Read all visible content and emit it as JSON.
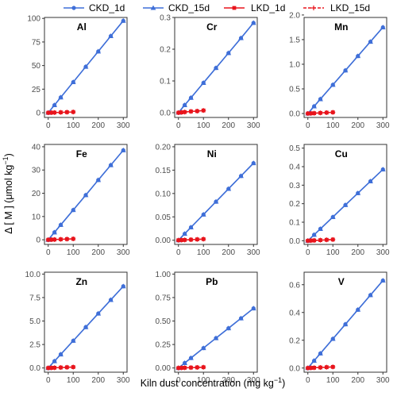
{
  "colors": {
    "ckd": "#3F6FD8",
    "lkd": "#E8141C",
    "frame": "#333333"
  },
  "legend": [
    {
      "label": "CKD_1d",
      "series": "CKD",
      "marker": "circle",
      "line": "solid"
    },
    {
      "label": "CKD_15d",
      "series": "CKD",
      "marker": "triangle",
      "line": "solid"
    },
    {
      "label": "LKD_1d",
      "series": "LKD",
      "marker": "square",
      "line": "solid"
    },
    {
      "label": "LKD_15d",
      "series": "LKD",
      "marker": "plus",
      "line": "dashed"
    }
  ],
  "axes": {
    "xlabel": "Kiln dust concentration (mg kg",
    "xlabel_sup": "−1",
    "xlabel_end": ")",
    "ylabel": "Δ [ M ] (μmol kg",
    "ylabel_sup": "−1",
    "ylabel_end": ")"
  },
  "chart_data": [
    {
      "type": "line",
      "title": "Al",
      "ylim": [
        -5,
        101
      ],
      "xlim": [
        -15,
        315
      ],
      "xticks": [
        0,
        100,
        200,
        300
      ],
      "yticks": [
        0,
        25,
        50,
        75,
        100
      ],
      "ytick_labels": [
        "0",
        "25",
        "50",
        "75",
        "100"
      ],
      "ckd_x": [
        0,
        25,
        50,
        100,
        150,
        200,
        250,
        300
      ],
      "ckd_1d": [
        0,
        8.1,
        16.3,
        32.5,
        48.8,
        65.0,
        81.3,
        97.5
      ],
      "ckd_15d": [
        0,
        8.1,
        16.3,
        32.5,
        48.8,
        65.0,
        81.3,
        97.5
      ],
      "lkd_x": [
        0,
        12.5,
        25,
        50,
        75,
        100
      ],
      "lkd_1d": [
        0,
        0.1,
        0.2,
        0.4,
        0.6,
        0.8
      ],
      "lkd_15d": [
        0,
        0.1,
        0.2,
        0.4,
        0.6,
        0.8
      ]
    },
    {
      "type": "line",
      "title": "Cr",
      "ylim": [
        -0.015,
        0.3
      ],
      "xlim": [
        -15,
        315
      ],
      "xticks": [
        0,
        100,
        200,
        300
      ],
      "yticks": [
        0,
        0.1,
        0.2,
        0.3
      ],
      "ytick_labels": [
        "0.0",
        "0.1",
        "0.2",
        "0.3"
      ],
      "ckd_x": [
        0,
        25,
        50,
        100,
        150,
        200,
        250,
        300
      ],
      "ckd_1d": [
        0,
        0.024,
        0.047,
        0.094,
        0.141,
        0.188,
        0.235,
        0.283
      ],
      "ckd_15d": [
        0,
        0.024,
        0.047,
        0.094,
        0.141,
        0.188,
        0.235,
        0.283
      ],
      "lkd_x": [
        0,
        12.5,
        25,
        50,
        75,
        100
      ],
      "lkd_1d": [
        0,
        0.001,
        0.002,
        0.004,
        0.005,
        0.007
      ],
      "lkd_15d": [
        0,
        0.001,
        0.002,
        0.004,
        0.005,
        0.007
      ]
    },
    {
      "type": "line",
      "title": "Mn",
      "ylim": [
        -0.08,
        1.95
      ],
      "xlim": [
        -15,
        315
      ],
      "xticks": [
        0,
        100,
        200,
        300
      ],
      "yticks": [
        0,
        0.5,
        1.0,
        1.5,
        2.0
      ],
      "ytick_labels": [
        "0.0",
        "0.5",
        "1.0",
        "1.5",
        "2.0"
      ],
      "ckd_x": [
        0,
        25,
        50,
        100,
        150,
        200,
        250,
        300
      ],
      "ckd_1d": [
        0,
        0.146,
        0.292,
        0.583,
        0.875,
        1.167,
        1.458,
        1.75
      ],
      "ckd_15d": [
        0,
        0.146,
        0.292,
        0.583,
        0.875,
        1.167,
        1.458,
        1.75
      ],
      "lkd_x": [
        0,
        12.5,
        25,
        50,
        75,
        100
      ],
      "lkd_1d": [
        0,
        0.003,
        0.006,
        0.012,
        0.018,
        0.024
      ],
      "lkd_15d": [
        0,
        0.003,
        0.006,
        0.012,
        0.018,
        0.024
      ]
    },
    {
      "type": "line",
      "title": "Fe",
      "ylim": [
        -2,
        41
      ],
      "xlim": [
        -15,
        315
      ],
      "xticks": [
        0,
        100,
        200,
        300
      ],
      "yticks": [
        0,
        10,
        20,
        30,
        40
      ],
      "ytick_labels": [
        "0",
        "10",
        "20",
        "30",
        "40"
      ],
      "ckd_x": [
        0,
        25,
        50,
        100,
        150,
        200,
        250,
        300
      ],
      "ckd_1d": [
        0,
        3.2,
        6.4,
        12.8,
        19.2,
        25.7,
        32.1,
        38.5
      ],
      "ckd_15d": [
        0,
        3.2,
        6.4,
        12.8,
        19.2,
        25.7,
        32.1,
        38.5
      ],
      "lkd_x": [
        0,
        12.5,
        25,
        50,
        75,
        100
      ],
      "lkd_1d": [
        0,
        0.05,
        0.1,
        0.2,
        0.3,
        0.4
      ],
      "lkd_15d": [
        0,
        0.05,
        0.1,
        0.2,
        0.3,
        0.4
      ]
    },
    {
      "type": "line",
      "title": "Ni",
      "ylim": [
        -0.009,
        0.205
      ],
      "xlim": [
        -15,
        315
      ],
      "xticks": [
        0,
        100,
        200,
        300
      ],
      "yticks": [
        0,
        0.05,
        0.1,
        0.15,
        0.2
      ],
      "ytick_labels": [
        "0.00",
        "0.05",
        "0.10",
        "0.15",
        "0.20"
      ],
      "ckd_x": [
        0,
        25,
        50,
        100,
        150,
        200,
        250,
        300
      ],
      "ckd_1d": [
        0,
        0.0138,
        0.0275,
        0.055,
        0.0825,
        0.11,
        0.1375,
        0.165
      ],
      "ckd_15d": [
        0,
        0.0138,
        0.0275,
        0.055,
        0.0825,
        0.11,
        0.1375,
        0.165
      ],
      "lkd_x": [
        0,
        12.5,
        25,
        50,
        75,
        100
      ],
      "lkd_1d": [
        0,
        0.0003,
        0.0006,
        0.0012,
        0.0018,
        0.0024
      ],
      "lkd_15d": [
        0,
        0.0003,
        0.0006,
        0.0012,
        0.0018,
        0.0024
      ]
    },
    {
      "type": "line",
      "title": "Cu",
      "ylim": [
        -0.02,
        0.52
      ],
      "xlim": [
        -15,
        315
      ],
      "xticks": [
        0,
        100,
        200,
        300
      ],
      "yticks": [
        0,
        0.1,
        0.2,
        0.3,
        0.4,
        0.5
      ],
      "ytick_labels": [
        "0.0",
        "0.1",
        "0.2",
        "0.3",
        "0.4",
        "0.5"
      ],
      "ckd_x": [
        0,
        25,
        50,
        100,
        150,
        200,
        250,
        300
      ],
      "ckd_1d": [
        0,
        0.032,
        0.064,
        0.128,
        0.193,
        0.257,
        0.321,
        0.385
      ],
      "ckd_15d": [
        0,
        0.032,
        0.064,
        0.128,
        0.193,
        0.257,
        0.321,
        0.385
      ],
      "lkd_x": [
        0,
        12.5,
        25,
        50,
        75,
        100
      ],
      "lkd_1d": [
        0,
        0.0008,
        0.0016,
        0.0032,
        0.0048,
        0.0064
      ],
      "lkd_15d": [
        0,
        0.0008,
        0.0016,
        0.0032,
        0.0048,
        0.0064
      ]
    },
    {
      "type": "line",
      "title": "Zn",
      "ylim": [
        -0.45,
        10.2
      ],
      "xlim": [
        -15,
        315
      ],
      "xticks": [
        0,
        100,
        200,
        300
      ],
      "yticks": [
        0,
        2.5,
        5.0,
        7.5,
        10.0
      ],
      "ytick_labels": [
        "0.0",
        "2.5",
        "5.0",
        "7.5",
        "10.0"
      ],
      "ckd_x": [
        0,
        25,
        50,
        100,
        150,
        200,
        250,
        300
      ],
      "ckd_1d": [
        0,
        0.725,
        1.45,
        2.9,
        4.35,
        5.8,
        7.25,
        8.7
      ],
      "ckd_15d": [
        0,
        0.725,
        1.45,
        2.9,
        4.35,
        5.8,
        7.25,
        8.7
      ],
      "lkd_x": [
        0,
        12.5,
        25,
        50,
        75,
        100
      ],
      "lkd_1d": [
        0,
        0.012,
        0.024,
        0.048,
        0.072,
        0.096
      ],
      "lkd_15d": [
        0,
        0.012,
        0.024,
        0.048,
        0.072,
        0.096
      ]
    },
    {
      "type": "line",
      "title": "Pb",
      "ylim": [
        -0.045,
        1.02
      ],
      "xlim": [
        -15,
        315
      ],
      "xticks": [
        0,
        100,
        200,
        300
      ],
      "yticks": [
        0,
        0.25,
        0.5,
        0.75,
        1.0
      ],
      "ytick_labels": [
        "0.00",
        "0.25",
        "0.50",
        "0.75",
        "1.00"
      ],
      "ckd_x": [
        0,
        25,
        50,
        100,
        150,
        200,
        250,
        300
      ],
      "ckd_1d": [
        0,
        0.053,
        0.106,
        0.212,
        0.318,
        0.423,
        0.529,
        0.635
      ],
      "ckd_15d": [
        0,
        0.053,
        0.106,
        0.212,
        0.318,
        0.423,
        0.529,
        0.635
      ],
      "lkd_x": [
        0,
        12.5,
        25,
        50,
        75,
        100
      ],
      "lkd_1d": [
        0,
        0.001,
        0.002,
        0.004,
        0.006,
        0.008
      ],
      "lkd_15d": [
        0,
        0.001,
        0.002,
        0.004,
        0.006,
        0.008
      ]
    },
    {
      "type": "line",
      "title": "V",
      "ylim": [
        -0.03,
        0.69
      ],
      "xlim": [
        -15,
        315
      ],
      "xticks": [
        0,
        100,
        200,
        300
      ],
      "yticks": [
        0,
        0.2,
        0.4,
        0.6
      ],
      "ytick_labels": [
        "0.0",
        "0.2",
        "0.4",
        "0.6"
      ],
      "ckd_x": [
        0,
        25,
        50,
        100,
        150,
        200,
        250,
        300
      ],
      "ckd_1d": [
        0,
        0.0525,
        0.105,
        0.21,
        0.315,
        0.42,
        0.525,
        0.63
      ],
      "ckd_15d": [
        0,
        0.0525,
        0.105,
        0.21,
        0.315,
        0.42,
        0.525,
        0.63
      ],
      "lkd_x": [
        0,
        12.5,
        25,
        50,
        75,
        100
      ],
      "lkd_1d": [
        0,
        0.001,
        0.002,
        0.004,
        0.006,
        0.008
      ],
      "lkd_15d": [
        0,
        0.001,
        0.002,
        0.004,
        0.006,
        0.008
      ]
    }
  ]
}
